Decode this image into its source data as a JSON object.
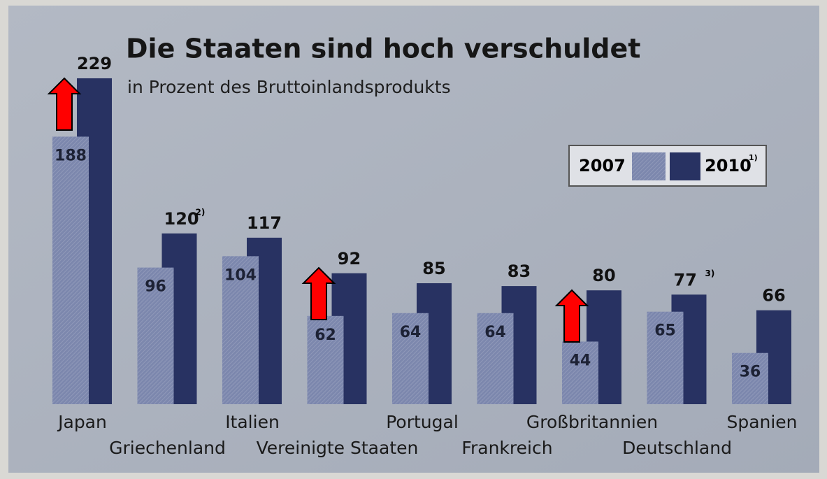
{
  "chart_data": {
    "type": "bar",
    "title": "Die Staaten sind hoch verschuldet",
    "subtitle": "in Prozent des Bruttoinlandsprodukts",
    "categories": [
      "Japan",
      "Griechenland",
      "Italien",
      "Vereinigte Staaten",
      "Portugal",
      "Frankreich",
      "Großbritannien",
      "Deutschland",
      "Spanien"
    ],
    "series": [
      {
        "name": "2007",
        "color": "#7c87ad",
        "values": [
          188,
          96,
          104,
          62,
          64,
          64,
          44,
          65,
          36
        ]
      },
      {
        "name": "2010",
        "name_note": "1)",
        "color": "#283262",
        "values": [
          229,
          120,
          117,
          92,
          85,
          83,
          80,
          77,
          66
        ],
        "value_notes": [
          null,
          "2)",
          null,
          null,
          null,
          null,
          null,
          "3)",
          null
        ]
      }
    ]
  }
}
